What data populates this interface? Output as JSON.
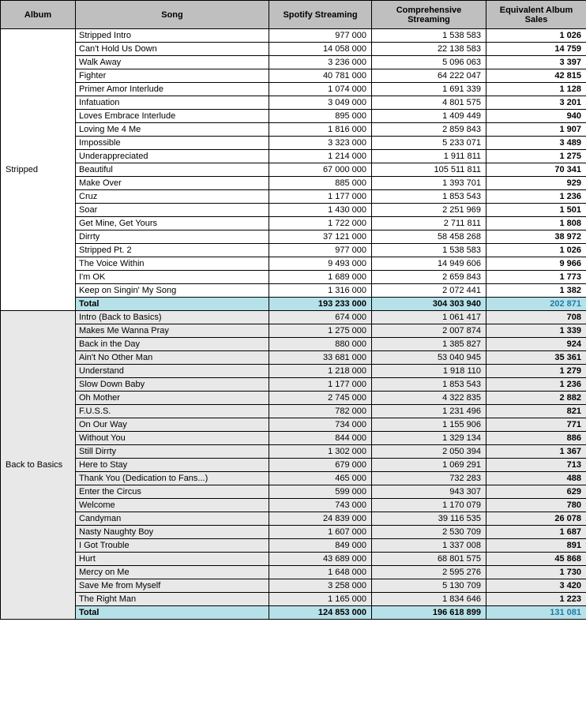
{
  "headers": {
    "album": "Album",
    "song": "Song",
    "spotify": "Spotify Streaming",
    "comprehensive": "Comprehensive Streaming",
    "eas": "Equivalent Album Sales"
  },
  "colors": {
    "header_bg": "#bfbfbf",
    "alt_bg": "#e8e8e8",
    "total_bg": "#b7e1e8",
    "total_eas_text": "#1f7ba6",
    "border": "#000000"
  },
  "albums": [
    {
      "name": "Stripped",
      "alt": false,
      "rows": [
        {
          "song": "Stripped Intro",
          "spotify": "977 000",
          "comp": "1 538 583",
          "eas": "1 026"
        },
        {
          "song": "Can't Hold Us Down",
          "spotify": "14 058 000",
          "comp": "22 138 583",
          "eas": "14 759"
        },
        {
          "song": "Walk Away",
          "spotify": "3 236 000",
          "comp": "5 096 063",
          "eas": "3 397"
        },
        {
          "song": "Fighter",
          "spotify": "40 781 000",
          "comp": "64 222 047",
          "eas": "42 815"
        },
        {
          "song": "Primer Amor Interlude",
          "spotify": "1 074 000",
          "comp": "1 691 339",
          "eas": "1 128"
        },
        {
          "song": "Infatuation",
          "spotify": "3 049 000",
          "comp": "4 801 575",
          "eas": "3 201"
        },
        {
          "song": "Loves Embrace Interlude",
          "spotify": "895 000",
          "comp": "1 409 449",
          "eas": "940"
        },
        {
          "song": "Loving Me 4 Me",
          "spotify": "1 816 000",
          "comp": "2 859 843",
          "eas": "1 907"
        },
        {
          "song": "Impossible",
          "spotify": "3 323 000",
          "comp": "5 233 071",
          "eas": "3 489"
        },
        {
          "song": "Underappreciated",
          "spotify": "1 214 000",
          "comp": "1 911 811",
          "eas": "1 275"
        },
        {
          "song": "Beautiful",
          "spotify": "67 000 000",
          "comp": "105 511 811",
          "eas": "70 341"
        },
        {
          "song": "Make Over",
          "spotify": "885 000",
          "comp": "1 393 701",
          "eas": "929"
        },
        {
          "song": "Cruz",
          "spotify": "1 177 000",
          "comp": "1 853 543",
          "eas": "1 236"
        },
        {
          "song": "Soar",
          "spotify": "1 430 000",
          "comp": "2 251 969",
          "eas": "1 501"
        },
        {
          "song": "Get Mine, Get Yours",
          "spotify": "1 722 000",
          "comp": "2 711 811",
          "eas": "1 808"
        },
        {
          "song": "Dirrty",
          "spotify": "37 121 000",
          "comp": "58 458 268",
          "eas": "38 972"
        },
        {
          "song": "Stripped Pt. 2",
          "spotify": "977 000",
          "comp": "1 538 583",
          "eas": "1 026"
        },
        {
          "song": "The Voice Within",
          "spotify": "9 493 000",
          "comp": "14 949 606",
          "eas": "9 966"
        },
        {
          "song": "I'm OK",
          "spotify": "1 689 000",
          "comp": "2 659 843",
          "eas": "1 773"
        },
        {
          "song": "Keep on Singin' My Song",
          "spotify": "1 316 000",
          "comp": "2 072 441",
          "eas": "1 382"
        }
      ],
      "total": {
        "song": "Total",
        "spotify": "193 233 000",
        "comp": "304 303 940",
        "eas": "202 871"
      }
    },
    {
      "name": "Back to Basics",
      "alt": true,
      "rows": [
        {
          "song": "Intro (Back to Basics)",
          "spotify": "674 000",
          "comp": "1 061 417",
          "eas": "708"
        },
        {
          "song": "Makes Me Wanna Pray",
          "spotify": "1 275 000",
          "comp": "2 007 874",
          "eas": "1 339"
        },
        {
          "song": "Back in the Day",
          "spotify": "880 000",
          "comp": "1 385 827",
          "eas": "924"
        },
        {
          "song": "Ain't No Other Man",
          "spotify": "33 681 000",
          "comp": "53 040 945",
          "eas": "35 361"
        },
        {
          "song": "Understand",
          "spotify": "1 218 000",
          "comp": "1 918 110",
          "eas": "1 279"
        },
        {
          "song": "Slow Down Baby",
          "spotify": "1 177 000",
          "comp": "1 853 543",
          "eas": "1 236"
        },
        {
          "song": "Oh Mother",
          "spotify": "2 745 000",
          "comp": "4 322 835",
          "eas": "2 882"
        },
        {
          "song": "F.U.S.S.",
          "spotify": "782 000",
          "comp": "1 231 496",
          "eas": "821"
        },
        {
          "song": "On Our Way",
          "spotify": "734 000",
          "comp": "1 155 906",
          "eas": "771"
        },
        {
          "song": "Without You",
          "spotify": "844 000",
          "comp": "1 329 134",
          "eas": "886"
        },
        {
          "song": "Still Dirrty",
          "spotify": "1 302 000",
          "comp": "2 050 394",
          "eas": "1 367"
        },
        {
          "song": "Here to Stay",
          "spotify": "679 000",
          "comp": "1 069 291",
          "eas": "713"
        },
        {
          "song": "Thank You (Dedication to Fans...)",
          "spotify": "465 000",
          "comp": "732 283",
          "eas": "488"
        },
        {
          "song": "Enter the Circus",
          "spotify": "599 000",
          "comp": "943 307",
          "eas": "629"
        },
        {
          "song": "Welcome",
          "spotify": "743 000",
          "comp": "1 170 079",
          "eas": "780"
        },
        {
          "song": "Candyman",
          "spotify": "24 839 000",
          "comp": "39 116 535",
          "eas": "26 078"
        },
        {
          "song": "Nasty Naughty Boy",
          "spotify": "1 607 000",
          "comp": "2 530 709",
          "eas": "1 687"
        },
        {
          "song": "I Got Trouble",
          "spotify": "849 000",
          "comp": "1 337 008",
          "eas": "891"
        },
        {
          "song": "Hurt",
          "spotify": "43 689 000",
          "comp": "68 801 575",
          "eas": "45 868"
        },
        {
          "song": "Mercy on Me",
          "spotify": "1 648 000",
          "comp": "2 595 276",
          "eas": "1 730"
        },
        {
          "song": "Save Me from Myself",
          "spotify": "3 258 000",
          "comp": "5 130 709",
          "eas": "3 420"
        },
        {
          "song": "The Right Man",
          "spotify": "1 165 000",
          "comp": "1 834 646",
          "eas": "1 223"
        }
      ],
      "total": {
        "song": "Total",
        "spotify": "124 853 000",
        "comp": "196 618 899",
        "eas": "131 081"
      }
    }
  ]
}
